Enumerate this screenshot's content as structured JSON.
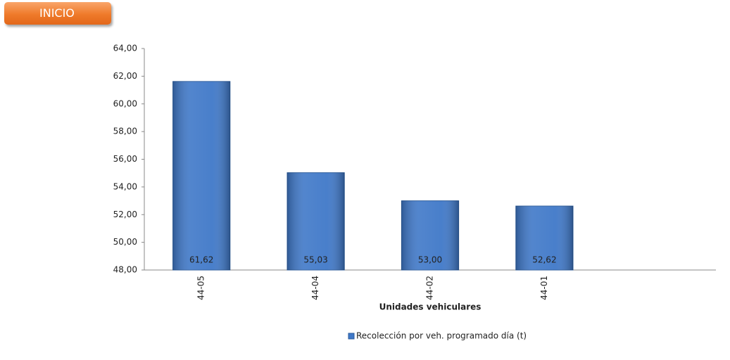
{
  "nav_button": "INICIO",
  "chart_data": {
    "type": "bar",
    "x_label": "Unidades vehiculares",
    "categories": [
      "44-05",
      "44-04",
      "44-02",
      "44-01",
      null
    ],
    "series": [
      {
        "name": "Recolección por veh. programado día (t)",
        "color": "#3f78c8",
        "values": [
          61.62,
          55.03,
          53.0,
          52.62,
          null
        ],
        "value_labels": [
          "61,62",
          "55,03",
          "53,00",
          "52,62",
          null
        ]
      }
    ],
    "ylim": [
      48,
      64
    ],
    "yticks": [
      {
        "value": 48,
        "label": "48,00"
      },
      {
        "value": 50,
        "label": "50,00"
      },
      {
        "value": 52,
        "label": "52,00"
      },
      {
        "value": 54,
        "label": "54,00"
      },
      {
        "value": 56,
        "label": "56,00"
      },
      {
        "value": 58,
        "label": "58,00"
      },
      {
        "value": 60,
        "label": "60,00"
      },
      {
        "value": 62,
        "label": "62,00"
      },
      {
        "value": 64,
        "label": "64,00"
      }
    ],
    "grid": false,
    "legend": "bottom"
  }
}
